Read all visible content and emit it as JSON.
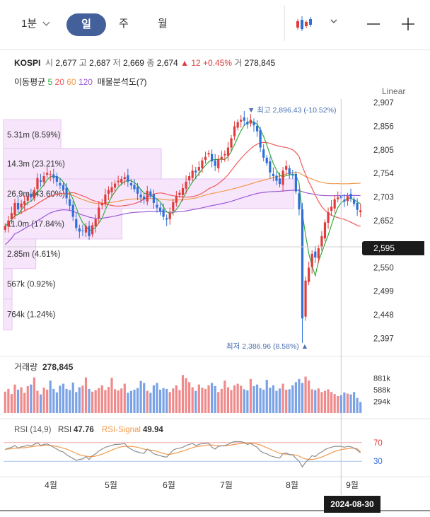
{
  "toolbar": {
    "interval_dropdown": "1분",
    "timeframes": [
      "일",
      "주",
      "월"
    ],
    "selected_timeframe": "일",
    "chart_type_icon": "candlestick-icon",
    "zoom_out_icon": "minus-icon",
    "zoom_in_icon": "plus-icon"
  },
  "quote": {
    "symbol": "KOSPI",
    "open_label": "시",
    "open": "2,677",
    "high_label": "고",
    "high": "2,687",
    "low_label": "저",
    "low": "2,669",
    "close_label": "종",
    "close": "2,674",
    "change": "12",
    "change_pct": "+0.45%",
    "volume_label": "거",
    "volume": "278,845"
  },
  "indicators": {
    "ma_label": "이동평균",
    "ma_periods": [
      "5",
      "20",
      "60",
      "120"
    ],
    "ma_colors": [
      "#2eae3c",
      "#f05a5a",
      "#f29a4c",
      "#9b59d6"
    ],
    "volume_profile_label": "매물분석도(7)"
  },
  "scale_mode": "Linear",
  "current_price": "2,595",
  "colors": {
    "up": "#e03c3c",
    "down": "#2f6fd8",
    "accent": "#44609a",
    "profile": "#f7e6fb",
    "profile_border": "#e9c3f2",
    "rsi": "#8e8e8e",
    "rsi_signal": "#f29a4c"
  },
  "chart_data": [
    {
      "type": "candlestick",
      "y_ticks": [
        "2,907",
        "2,856",
        "2,805",
        "2,754",
        "2,703",
        "2,652",
        "2,550",
        "2,499",
        "2,448",
        "2,397"
      ],
      "x_ticks": [
        "4월",
        "5월",
        "6월",
        "7월",
        "8월",
        "9월"
      ],
      "ylim": [
        2370,
        2915
      ],
      "high_marker": {
        "label": "최고",
        "value": "2,896.43",
        "pct": "(-10.52%)"
      },
      "low_marker": {
        "label": "최저",
        "value": "2,386.96",
        "pct": "(8.58%)"
      },
      "volume_profile": [
        {
          "label": "5.31m",
          "pct": "(8.59%)",
          "lo": 2805,
          "hi": 2870,
          "len": 0.16
        },
        {
          "label": "14.3m",
          "pct": "(23.21%)",
          "lo": 2742,
          "hi": 2808,
          "len": 0.44
        },
        {
          "label": "26.9m",
          "pct": "(43.60%)",
          "lo": 2678,
          "hi": 2742,
          "len": 0.81
        },
        {
          "label": "11.0m",
          "pct": "(17.84%)",
          "lo": 2612,
          "hi": 2678,
          "len": 0.33
        },
        {
          "label": "2.85m",
          "pct": "(4.61%)",
          "lo": 2548,
          "hi": 2612,
          "len": 0.09
        },
        {
          "label": "567k",
          "pct": "(0.92%)",
          "lo": 2482,
          "hi": 2548,
          "len": 0.02
        },
        {
          "label": "764k",
          "pct": "(1.24%)",
          "lo": 2415,
          "hi": 2482,
          "len": 0.02
        }
      ],
      "closes": [
        2640,
        2652,
        2668,
        2690,
        2676,
        2689,
        2694,
        2705,
        2702,
        2718,
        2744,
        2736,
        2748,
        2755,
        2752,
        2744,
        2736,
        2728,
        2718,
        2700,
        2684,
        2660,
        2636,
        2628,
        2630,
        2640,
        2618,
        2642,
        2655,
        2680,
        2690,
        2708,
        2718,
        2724,
        2732,
        2738,
        2742,
        2746,
        2736,
        2728,
        2720,
        2710,
        2702,
        2698,
        2716,
        2706,
        2690,
        2680,
        2672,
        2660,
        2654,
        2668,
        2692,
        2705,
        2712,
        2722,
        2736,
        2748,
        2760,
        2756,
        2768,
        2782,
        2790,
        2798,
        2780,
        2770,
        2785,
        2790,
        2796,
        2810,
        2830,
        2856,
        2865,
        2870,
        2868,
        2860,
        2870,
        2858,
        2845,
        2810,
        2788,
        2776,
        2756,
        2748,
        2738,
        2731,
        2760,
        2770,
        2752,
        2750,
        2715,
        2676,
        2440,
        2522,
        2550,
        2580,
        2572,
        2592,
        2618,
        2648,
        2670,
        2682,
        2698,
        2702,
        2700,
        2693,
        2705,
        2700,
        2688,
        2675,
        2674
      ]
    },
    {
      "type": "bar",
      "title": "거래량",
      "value": "278,845",
      "y_ticks": [
        "881k",
        "588k",
        "294k"
      ],
      "ylim": [
        0,
        1000
      ],
      "values": [
        540,
        610,
        480,
        720,
        590,
        650,
        510,
        680,
        720,
        900,
        560,
        470,
        640,
        590,
        820,
        610,
        520,
        690,
        740,
        610,
        580,
        770,
        530,
        650,
        690,
        900,
        610,
        540,
        580,
        630,
        700,
        580,
        660,
        890,
        600,
        570,
        620,
        740,
        510,
        560,
        590,
        630,
        810,
        760,
        560,
        510,
        700,
        760,
        590,
        630,
        610,
        530,
        620,
        700,
        580,
        960,
        880,
        780,
        650,
        560,
        720,
        640,
        610,
        700,
        760,
        680,
        530,
        610,
        820,
        650,
        580,
        700,
        740,
        690,
        600,
        570,
        860,
        680,
        720,
        630,
        590,
        840,
        640,
        700,
        560,
        620,
        740,
        590,
        600,
        700,
        780,
        860,
        760,
        920,
        820,
        600,
        580,
        620,
        530,
        560,
        600,
        530,
        480,
        430,
        450,
        520,
        490,
        470,
        530,
        380,
        279
      ]
    },
    {
      "type": "line",
      "title": "RSI",
      "params": "(14,9)",
      "rsi_label": "RSI",
      "rsi_value": "47.76",
      "signal_label": "RSI-Signal",
      "signal_value": "49.94",
      "y_ticks": [
        "70",
        "30"
      ],
      "ylim": [
        0,
        100
      ],
      "series": [
        {
          "name": "RSI",
          "values": [
            55,
            58,
            60,
            64,
            58,
            61,
            62,
            65,
            63,
            66,
            70,
            64,
            66,
            67,
            64,
            60,
            56,
            52,
            50,
            44,
            40,
            36,
            32,
            34,
            35,
            40,
            34,
            42,
            46,
            52,
            56,
            60,
            62,
            64,
            66,
            66,
            67,
            68,
            60,
            56,
            52,
            50,
            48,
            47,
            56,
            52,
            46,
            44,
            42,
            40,
            39,
            46,
            54,
            57,
            58,
            60,
            64,
            66,
            68,
            64,
            66,
            68,
            68,
            69,
            60,
            56,
            62,
            63,
            64,
            66,
            70,
            72,
            72,
            72,
            70,
            66,
            68,
            64,
            60,
            52,
            48,
            46,
            42,
            40,
            38,
            37,
            46,
            48,
            44,
            44,
            36,
            30,
            18,
            28,
            34,
            42,
            40,
            46,
            50,
            55,
            58,
            60,
            62,
            62,
            62,
            60,
            62,
            61,
            58,
            54,
            48
          ]
        },
        {
          "name": "RSI-Signal",
          "values": [
            56,
            56,
            57,
            58,
            58,
            59,
            59,
            60,
            61,
            62,
            63,
            63,
            64,
            64,
            64,
            63,
            62,
            60,
            58,
            56,
            53,
            50,
            47,
            44,
            42,
            41,
            40,
            40,
            41,
            43,
            45,
            48,
            51,
            54,
            57,
            59,
            61,
            62,
            62,
            62,
            61,
            60,
            58,
            56,
            55,
            54,
            53,
            51,
            49,
            47,
            45,
            45,
            46,
            48,
            50,
            52,
            54,
            57,
            59,
            61,
            62,
            63,
            64,
            65,
            65,
            64,
            63,
            63,
            63,
            64,
            65,
            66,
            67,
            68,
            69,
            69,
            69,
            68,
            67,
            65,
            62,
            59,
            56,
            53,
            50,
            47,
            46,
            45,
            45,
            44,
            43,
            41,
            37,
            35,
            34,
            34,
            35,
            37,
            39,
            42,
            45,
            48,
            51,
            53,
            55,
            56,
            57,
            58,
            58,
            57,
            50
          ]
        }
      ]
    }
  ]
}
